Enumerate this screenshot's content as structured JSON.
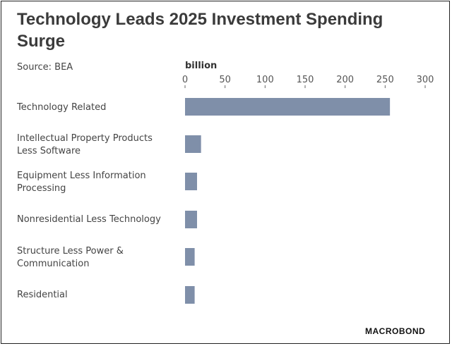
{
  "chart_data": {
    "type": "bar",
    "orientation": "horizontal",
    "title": "Technology Leads 2025 Investment Spending Surge",
    "source": "Source: BEA",
    "xlabel": "billion",
    "xlim": [
      0,
      300
    ],
    "ticks": [
      0,
      50,
      100,
      150,
      200,
      250,
      300
    ],
    "tick_labels": [
      "0",
      "50",
      "100",
      "150",
      "200",
      "250",
      "300"
    ],
    "categories": [
      "Technology Related",
      "Intellectual Property Products Less Software",
      "Equipment Less Information Processing",
      "Nonresidential Less Technology",
      "Structure Less Power & Communication",
      "Residential"
    ],
    "values": [
      256,
      20,
      15,
      15,
      12,
      12
    ],
    "bar_color": "#7f8fa9",
    "grid": false
  },
  "branding": {
    "logo": "MACROBOND"
  }
}
